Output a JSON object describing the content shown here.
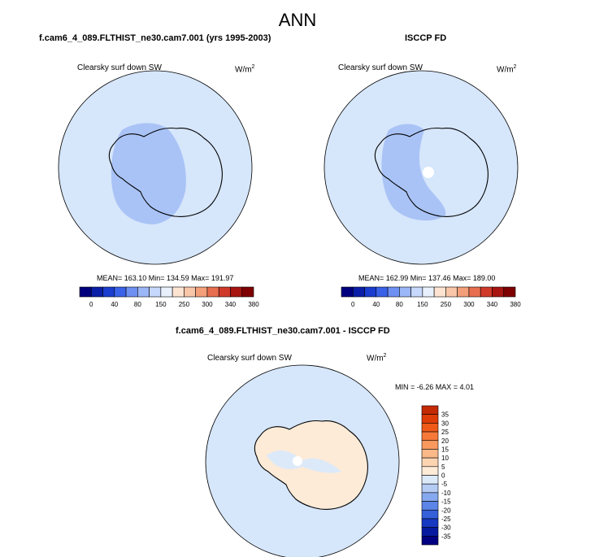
{
  "page_title": "ANN",
  "panels": [
    {
      "title": "f.cam6_4_089.FLTHIST_ne30.cam7.001 (yrs 1995-2003)",
      "variable": "Clearsky surf down SW",
      "units": "W/m",
      "units_exp": "2",
      "stats": "MEAN= 163.10  Min= 134.59  Max= 191.97"
    },
    {
      "title": "ISCCP FD",
      "variable": "Clearsky surf down SW",
      "units": "W/m",
      "units_exp": "2",
      "stats": "MEAN= 162.99  Min= 137.46  Max= 189.00"
    },
    {
      "title": "f.cam6_4_089.FLTHIST_ne30.cam7.001 - ISCCP FD",
      "variable": "Clearsky surf down SW",
      "units": "W/m",
      "units_exp": "2",
      "stats": "MIN =  -6.26 MAX =   4.01"
    }
  ],
  "chart_data": [
    {
      "type": "heatmap",
      "projection": "south-polar-stereographic",
      "title": "f.cam6_4_089.FLTHIST_ne30.cam7.001 (yrs 1995-2003)",
      "variable": "Clearsky surf down SW",
      "units": "W/m2",
      "mean": 163.1,
      "min": 134.59,
      "max": 191.97,
      "colorbar": {
        "orientation": "horizontal",
        "tick_labels": [
          "0",
          "40",
          "80",
          "150",
          "250",
          "300",
          "340",
          "380"
        ],
        "colors": [
          "#00007f",
          "#0a1ea8",
          "#1a3ccf",
          "#3a62e8",
          "#6d90f2",
          "#9cb7f7",
          "#c6d8fb",
          "#e8f0fe",
          "#fde4d2",
          "#f8c6a8",
          "#f39f7a",
          "#e76e4e",
          "#d0392a",
          "#a81410",
          "#7f0000"
        ]
      }
    },
    {
      "type": "heatmap",
      "projection": "south-polar-stereographic",
      "title": "ISCCP FD",
      "variable": "Clearsky surf down SW",
      "units": "W/m2",
      "mean": 162.99,
      "min": 137.46,
      "max": 189.0,
      "colorbar": {
        "orientation": "horizontal",
        "tick_labels": [
          "0",
          "40",
          "80",
          "150",
          "250",
          "300",
          "340",
          "380"
        ],
        "colors": [
          "#00007f",
          "#0a1ea8",
          "#1a3ccf",
          "#3a62e8",
          "#6d90f2",
          "#9cb7f7",
          "#c6d8fb",
          "#e8f0fe",
          "#fde4d2",
          "#f8c6a8",
          "#f39f7a",
          "#e76e4e",
          "#d0392a",
          "#a81410",
          "#7f0000"
        ]
      }
    },
    {
      "type": "heatmap",
      "projection": "south-polar-stereographic",
      "title": "f.cam6_4_089.FLTHIST_ne30.cam7.001 - ISCCP FD",
      "variable": "Clearsky surf down SW",
      "units": "W/m2",
      "min": -6.26,
      "max": 4.01,
      "colorbar": {
        "orientation": "vertical",
        "tick_labels": [
          "35",
          "30",
          "25",
          "20",
          "15",
          "10",
          "5",
          "0",
          "-5",
          "-10",
          "-15",
          "-20",
          "-25",
          "-30",
          "-35"
        ],
        "colors": [
          "#c42a04",
          "#de3c08",
          "#ef5a18",
          "#f6793a",
          "#f9995e",
          "#fbb888",
          "#fcd4b2",
          "#fdebd8",
          "#dce9f9",
          "#b4cbf4",
          "#86a8ee",
          "#5b85e6",
          "#3560da",
          "#1638c2",
          "#061aa0",
          "#000080"
        ]
      }
    }
  ]
}
